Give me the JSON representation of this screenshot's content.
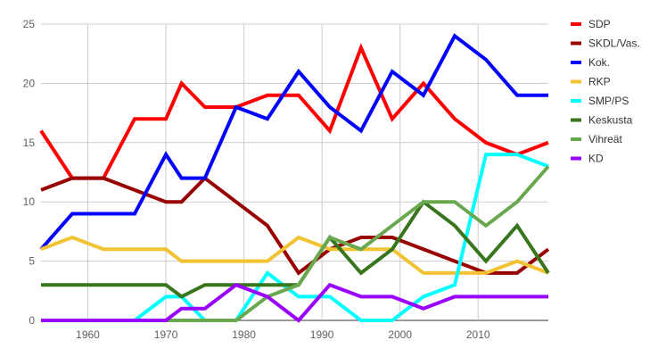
{
  "chart_data": {
    "type": "line",
    "title": "",
    "xlabel": "",
    "ylabel": "",
    "xlim": [
      1954,
      2019
    ],
    "ylim": [
      0,
      25
    ],
    "x_ticks": [
      1960,
      1970,
      1980,
      1990,
      2000,
      2010
    ],
    "y_ticks": [
      0,
      5,
      10,
      15,
      20,
      25
    ],
    "grid": "vertical and horizontal",
    "legend_position": "right",
    "x": [
      1954,
      1958,
      1962,
      1966,
      1970,
      1972,
      1975,
      1979,
      1983,
      1987,
      1991,
      1995,
      1999,
      2003,
      2007,
      2011,
      2015,
      2019
    ],
    "series": [
      {
        "name": "SDP",
        "color": "#ff0000",
        "values": [
          16,
          12,
          12,
          17,
          17,
          20,
          18,
          18,
          19,
          19,
          16,
          23,
          17,
          20,
          17,
          15,
          14,
          15
        ]
      },
      {
        "name": "SKDL/Vas.",
        "color": "#990000",
        "values": [
          11,
          12,
          12,
          11,
          10,
          10,
          12,
          10,
          8,
          4,
          6,
          7,
          7,
          6,
          5,
          4,
          4,
          6
        ]
      },
      {
        "name": "Kok.",
        "color": "#0000ff",
        "values": [
          6,
          9,
          9,
          9,
          14,
          12,
          12,
          18,
          17,
          21,
          18,
          16,
          21,
          19,
          24,
          22,
          19,
          19
        ]
      },
      {
        "name": "RKP",
        "color": "#f1c232",
        "values": [
          6,
          7,
          6,
          6,
          6,
          5,
          5,
          5,
          5,
          7,
          6,
          6,
          6,
          4,
          4,
          4,
          5,
          4
        ]
      },
      {
        "name": "SMP/PS",
        "color": "#00ffff",
        "values": [
          0,
          0,
          0,
          0,
          2,
          2,
          0,
          0,
          4,
          2,
          2,
          0,
          0,
          2,
          3,
          14,
          14,
          13
        ]
      },
      {
        "name": "Keskusta",
        "color": "#38761d",
        "values": [
          3,
          3,
          3,
          3,
          3,
          2,
          3,
          3,
          3,
          3,
          7,
          4,
          6,
          10,
          8,
          5,
          8,
          4
        ]
      },
      {
        "name": "Vihreät",
        "color": "#6aa84f",
        "values": [
          0,
          0,
          0,
          0,
          0,
          0,
          0,
          0,
          2,
          3,
          7,
          6,
          8,
          10,
          10,
          8,
          10,
          13
        ]
      },
      {
        "name": "KD",
        "color": "#9900ff",
        "values": [
          0,
          0,
          0,
          0,
          0,
          1,
          1,
          3,
          2,
          0,
          3,
          2,
          2,
          1,
          2,
          2,
          2,
          2
        ]
      }
    ]
  }
}
